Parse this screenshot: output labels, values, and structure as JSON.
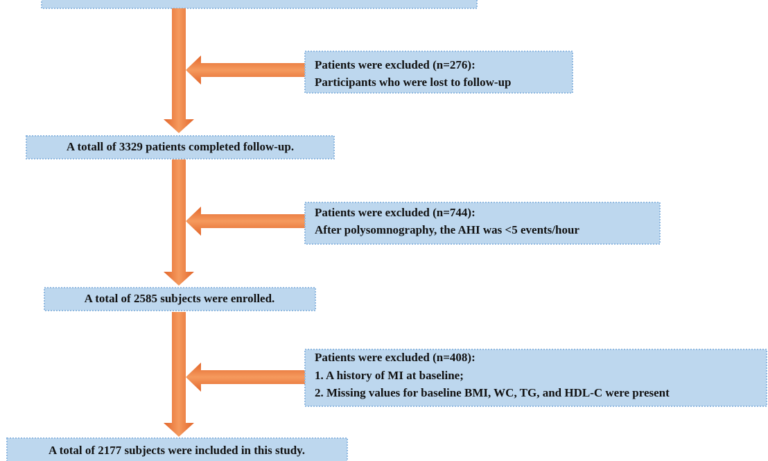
{
  "steps": [
    {
      "text": "A totall of 3329 patients completed follow-up."
    },
    {
      "text": "A total of 2585 subjects were enrolled."
    },
    {
      "text": "A total of 2177 subjects were included in this study."
    }
  ],
  "exclusions": [
    {
      "lines": [
        "Patients were excluded (n=276):",
        "Participants who were lost to follow-up"
      ]
    },
    {
      "lines": [
        "Patients were excluded (n=744):",
        "After polysomnography, the AHI was <5 events/hour"
      ]
    },
    {
      "lines": [
        "Patients were excluded (n=408):",
        "1. A history of MI at baseline;",
        "2. Missing values for baseline BMI, WC, TG, and HDL-C were present"
      ]
    }
  ]
}
